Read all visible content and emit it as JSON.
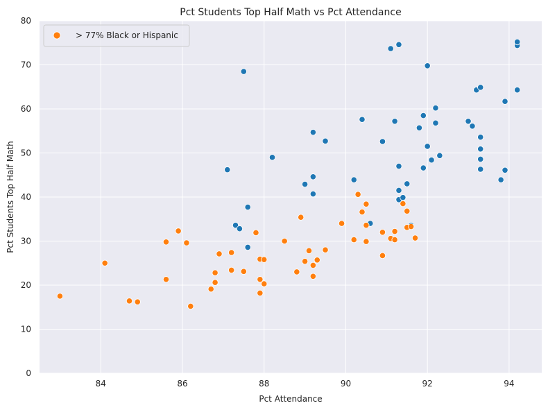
{
  "chart_data": {
    "type": "scatter",
    "title": "Pct Students Top Half Math vs Pct Attendance",
    "xlabel": "Pct Attendance",
    "ylabel": "Pct Students Top Half Math",
    "xlim": [
      82.5,
      94.8
    ],
    "ylim": [
      0,
      80
    ],
    "xticks": [
      84,
      86,
      88,
      90,
      92,
      94
    ],
    "yticks": [
      0,
      10,
      20,
      30,
      40,
      50,
      60,
      70,
      80
    ],
    "grid": true,
    "legend_position": "top-left",
    "colors": {
      "background": "#eaeaf2",
      "grid": "#ffffff",
      "other": "#1f77b4",
      "highlight": "#ff7f0e"
    },
    "series": [
      {
        "name": "",
        "color": "#1f77b4",
        "points": [
          [
            87.5,
            68.5
          ],
          [
            87.1,
            46.2
          ],
          [
            87.6,
            37.7
          ],
          [
            87.3,
            33.6
          ],
          [
            87.4,
            32.8
          ],
          [
            87.6,
            28.6
          ],
          [
            88.2,
            49.0
          ],
          [
            89.2,
            54.7
          ],
          [
            89.5,
            52.7
          ],
          [
            89.2,
            44.6
          ],
          [
            89.0,
            42.9
          ],
          [
            89.2,
            40.7
          ],
          [
            90.2,
            43.9
          ],
          [
            90.4,
            57.6
          ],
          [
            90.6,
            34.0
          ],
          [
            90.9,
            52.6
          ],
          [
            91.1,
            73.7
          ],
          [
            91.3,
            74.6
          ],
          [
            91.2,
            57.2
          ],
          [
            91.3,
            47.0
          ],
          [
            91.3,
            41.5
          ],
          [
            91.3,
            39.4
          ],
          [
            91.4,
            39.9
          ],
          [
            91.5,
            43.0
          ],
          [
            91.6,
            33.6
          ],
          [
            91.8,
            55.7
          ],
          [
            91.9,
            58.5
          ],
          [
            92.0,
            69.8
          ],
          [
            92.0,
            51.5
          ],
          [
            91.9,
            46.6
          ],
          [
            92.1,
            48.4
          ],
          [
            92.2,
            56.8
          ],
          [
            92.2,
            60.2
          ],
          [
            92.3,
            49.4
          ],
          [
            93.0,
            57.2
          ],
          [
            93.1,
            56.1
          ],
          [
            93.2,
            64.3
          ],
          [
            93.3,
            64.9
          ],
          [
            93.3,
            53.6
          ],
          [
            93.3,
            50.9
          ],
          [
            93.3,
            48.6
          ],
          [
            93.3,
            46.3
          ],
          [
            93.8,
            43.9
          ],
          [
            93.9,
            46.1
          ],
          [
            93.9,
            61.7
          ],
          [
            94.2,
            74.4
          ],
          [
            94.2,
            75.2
          ],
          [
            94.2,
            64.3
          ]
        ]
      },
      {
        "name": "> 77% Black or Hispanic",
        "color": "#ff7f0e",
        "points": [
          [
            83.0,
            17.5
          ],
          [
            84.1,
            25.0
          ],
          [
            84.7,
            16.4
          ],
          [
            84.9,
            16.2
          ],
          [
            85.6,
            21.3
          ],
          [
            85.6,
            29.8
          ],
          [
            85.9,
            32.3
          ],
          [
            86.1,
            29.6
          ],
          [
            86.2,
            15.2
          ],
          [
            86.7,
            19.1
          ],
          [
            86.8,
            20.6
          ],
          [
            86.8,
            22.8
          ],
          [
            86.9,
            27.1
          ],
          [
            87.2,
            27.4
          ],
          [
            87.2,
            23.4
          ],
          [
            87.5,
            23.1
          ],
          [
            87.8,
            31.9
          ],
          [
            87.9,
            18.2
          ],
          [
            87.9,
            21.3
          ],
          [
            87.9,
            25.9
          ],
          [
            88.0,
            25.8
          ],
          [
            88.0,
            20.3
          ],
          [
            88.5,
            30.0
          ],
          [
            88.8,
            23.0
          ],
          [
            88.9,
            35.4
          ],
          [
            89.0,
            25.4
          ],
          [
            89.1,
            27.8
          ],
          [
            89.2,
            24.5
          ],
          [
            89.2,
            22.0
          ],
          [
            89.3,
            25.7
          ],
          [
            89.5,
            28.0
          ],
          [
            89.9,
            34.0
          ],
          [
            90.2,
            30.3
          ],
          [
            90.3,
            40.6
          ],
          [
            90.4,
            36.6
          ],
          [
            90.5,
            38.4
          ],
          [
            90.5,
            29.9
          ],
          [
            90.5,
            33.6
          ],
          [
            90.9,
            32.0
          ],
          [
            90.9,
            26.7
          ],
          [
            91.1,
            30.6
          ],
          [
            91.2,
            30.3
          ],
          [
            91.2,
            32.2
          ],
          [
            91.4,
            38.5
          ],
          [
            91.5,
            36.8
          ],
          [
            91.5,
            33.1
          ],
          [
            91.6,
            33.3
          ],
          [
            91.7,
            30.7
          ]
        ]
      }
    ]
  }
}
